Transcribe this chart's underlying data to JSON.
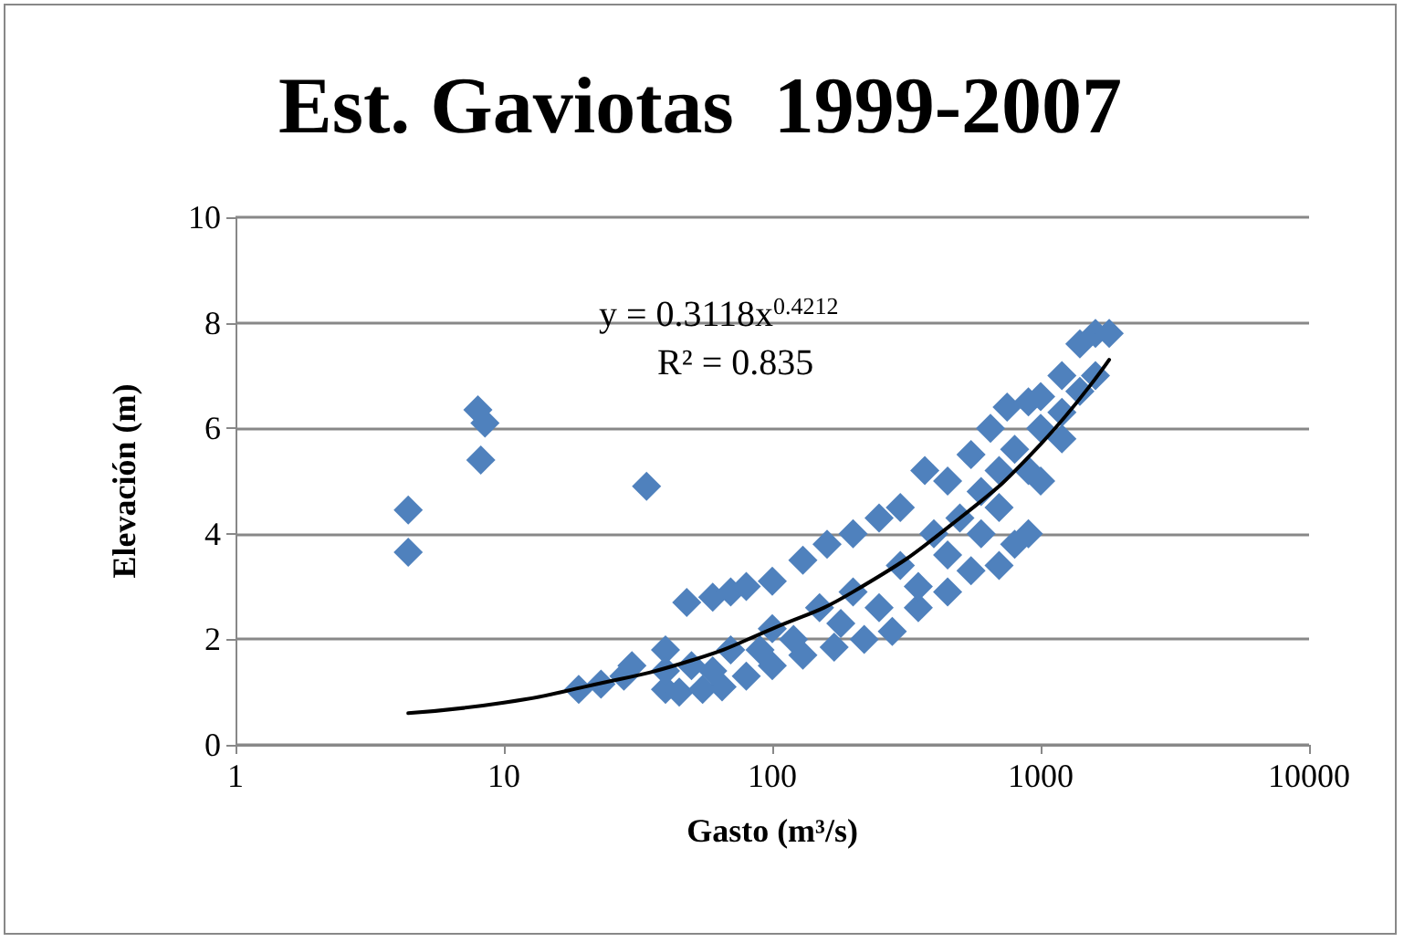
{
  "chart_data": {
    "type": "scatter",
    "title": "Est. Gaviotas  1999-2007",
    "xlabel": "Gasto (m³/s)",
    "ylabel": "Elevación (m)",
    "annotations": [
      "y = 0.3118x$^{0.4212}$",
      "R² = 0.835"
    ],
    "log": "x",
    "xlim": [
      1,
      10000
    ],
    "xticks": [
      1,
      10,
      100,
      1000,
      10000
    ],
    "ylim": [
      0,
      10
    ],
    "yticks": [
      0,
      2,
      4,
      6,
      8,
      10
    ],
    "grid": "y",
    "marker": "diamond",
    "series": [
      {
        "color": "#4f81bd",
        "x": [
          4.4,
          4.4,
          8,
          8.5,
          8.2,
          34,
          19,
          23,
          28,
          40,
          45,
          55,
          65,
          80,
          100,
          130,
          170,
          220,
          280,
          350,
          450,
          550,
          700,
          800,
          900,
          1000,
          1200,
          1400,
          1600,
          30,
          40,
          48,
          60,
          70,
          80,
          100,
          130,
          160,
          200,
          250,
          300,
          370,
          450,
          550,
          650,
          750,
          900,
          1000,
          1200,
          1400,
          1600,
          1800,
          50,
          70,
          100,
          150,
          200,
          300,
          400,
          500,
          600,
          700,
          800,
          1000,
          1200,
          40,
          60,
          90,
          120,
          180,
          250,
          350,
          450,
          600,
          700,
          900
        ],
        "values": [
          4.45,
          3.65,
          6.35,
          6.1,
          5.4,
          4.9,
          1.05,
          1.15,
          1.3,
          1.05,
          1.0,
          1.05,
          1.1,
          1.3,
          1.5,
          1.7,
          1.85,
          2.0,
          2.15,
          2.6,
          2.9,
          3.3,
          3.4,
          3.8,
          4.0,
          5.0,
          5.8,
          6.7,
          7.0,
          1.5,
          1.8,
          2.7,
          2.8,
          2.9,
          3.0,
          3.1,
          3.5,
          3.8,
          4.0,
          4.3,
          4.5,
          5.2,
          5.0,
          5.5,
          6.0,
          6.4,
          6.5,
          6.6,
          7.0,
          7.6,
          7.8,
          7.8,
          1.5,
          1.8,
          2.2,
          2.6,
          2.9,
          3.4,
          4.0,
          4.3,
          4.8,
          5.2,
          5.6,
          6.0,
          6.3,
          1.4,
          1.4,
          1.8,
          2.0,
          2.3,
          2.6,
          3.0,
          3.6,
          4.0,
          4.5,
          5.2
        ]
      },
      {
        "type": "line",
        "color": "#000000",
        "marker": "none",
        "line_style": "solid",
        "x": [
          4.4,
          10,
          20,
          50,
          100,
          200,
          500,
          1000,
          1800
        ],
        "values": [
          0.6,
          0.8,
          1.1,
          1.6,
          2.2,
          2.9,
          4.3,
          5.7,
          7.3
        ]
      }
    ]
  }
}
